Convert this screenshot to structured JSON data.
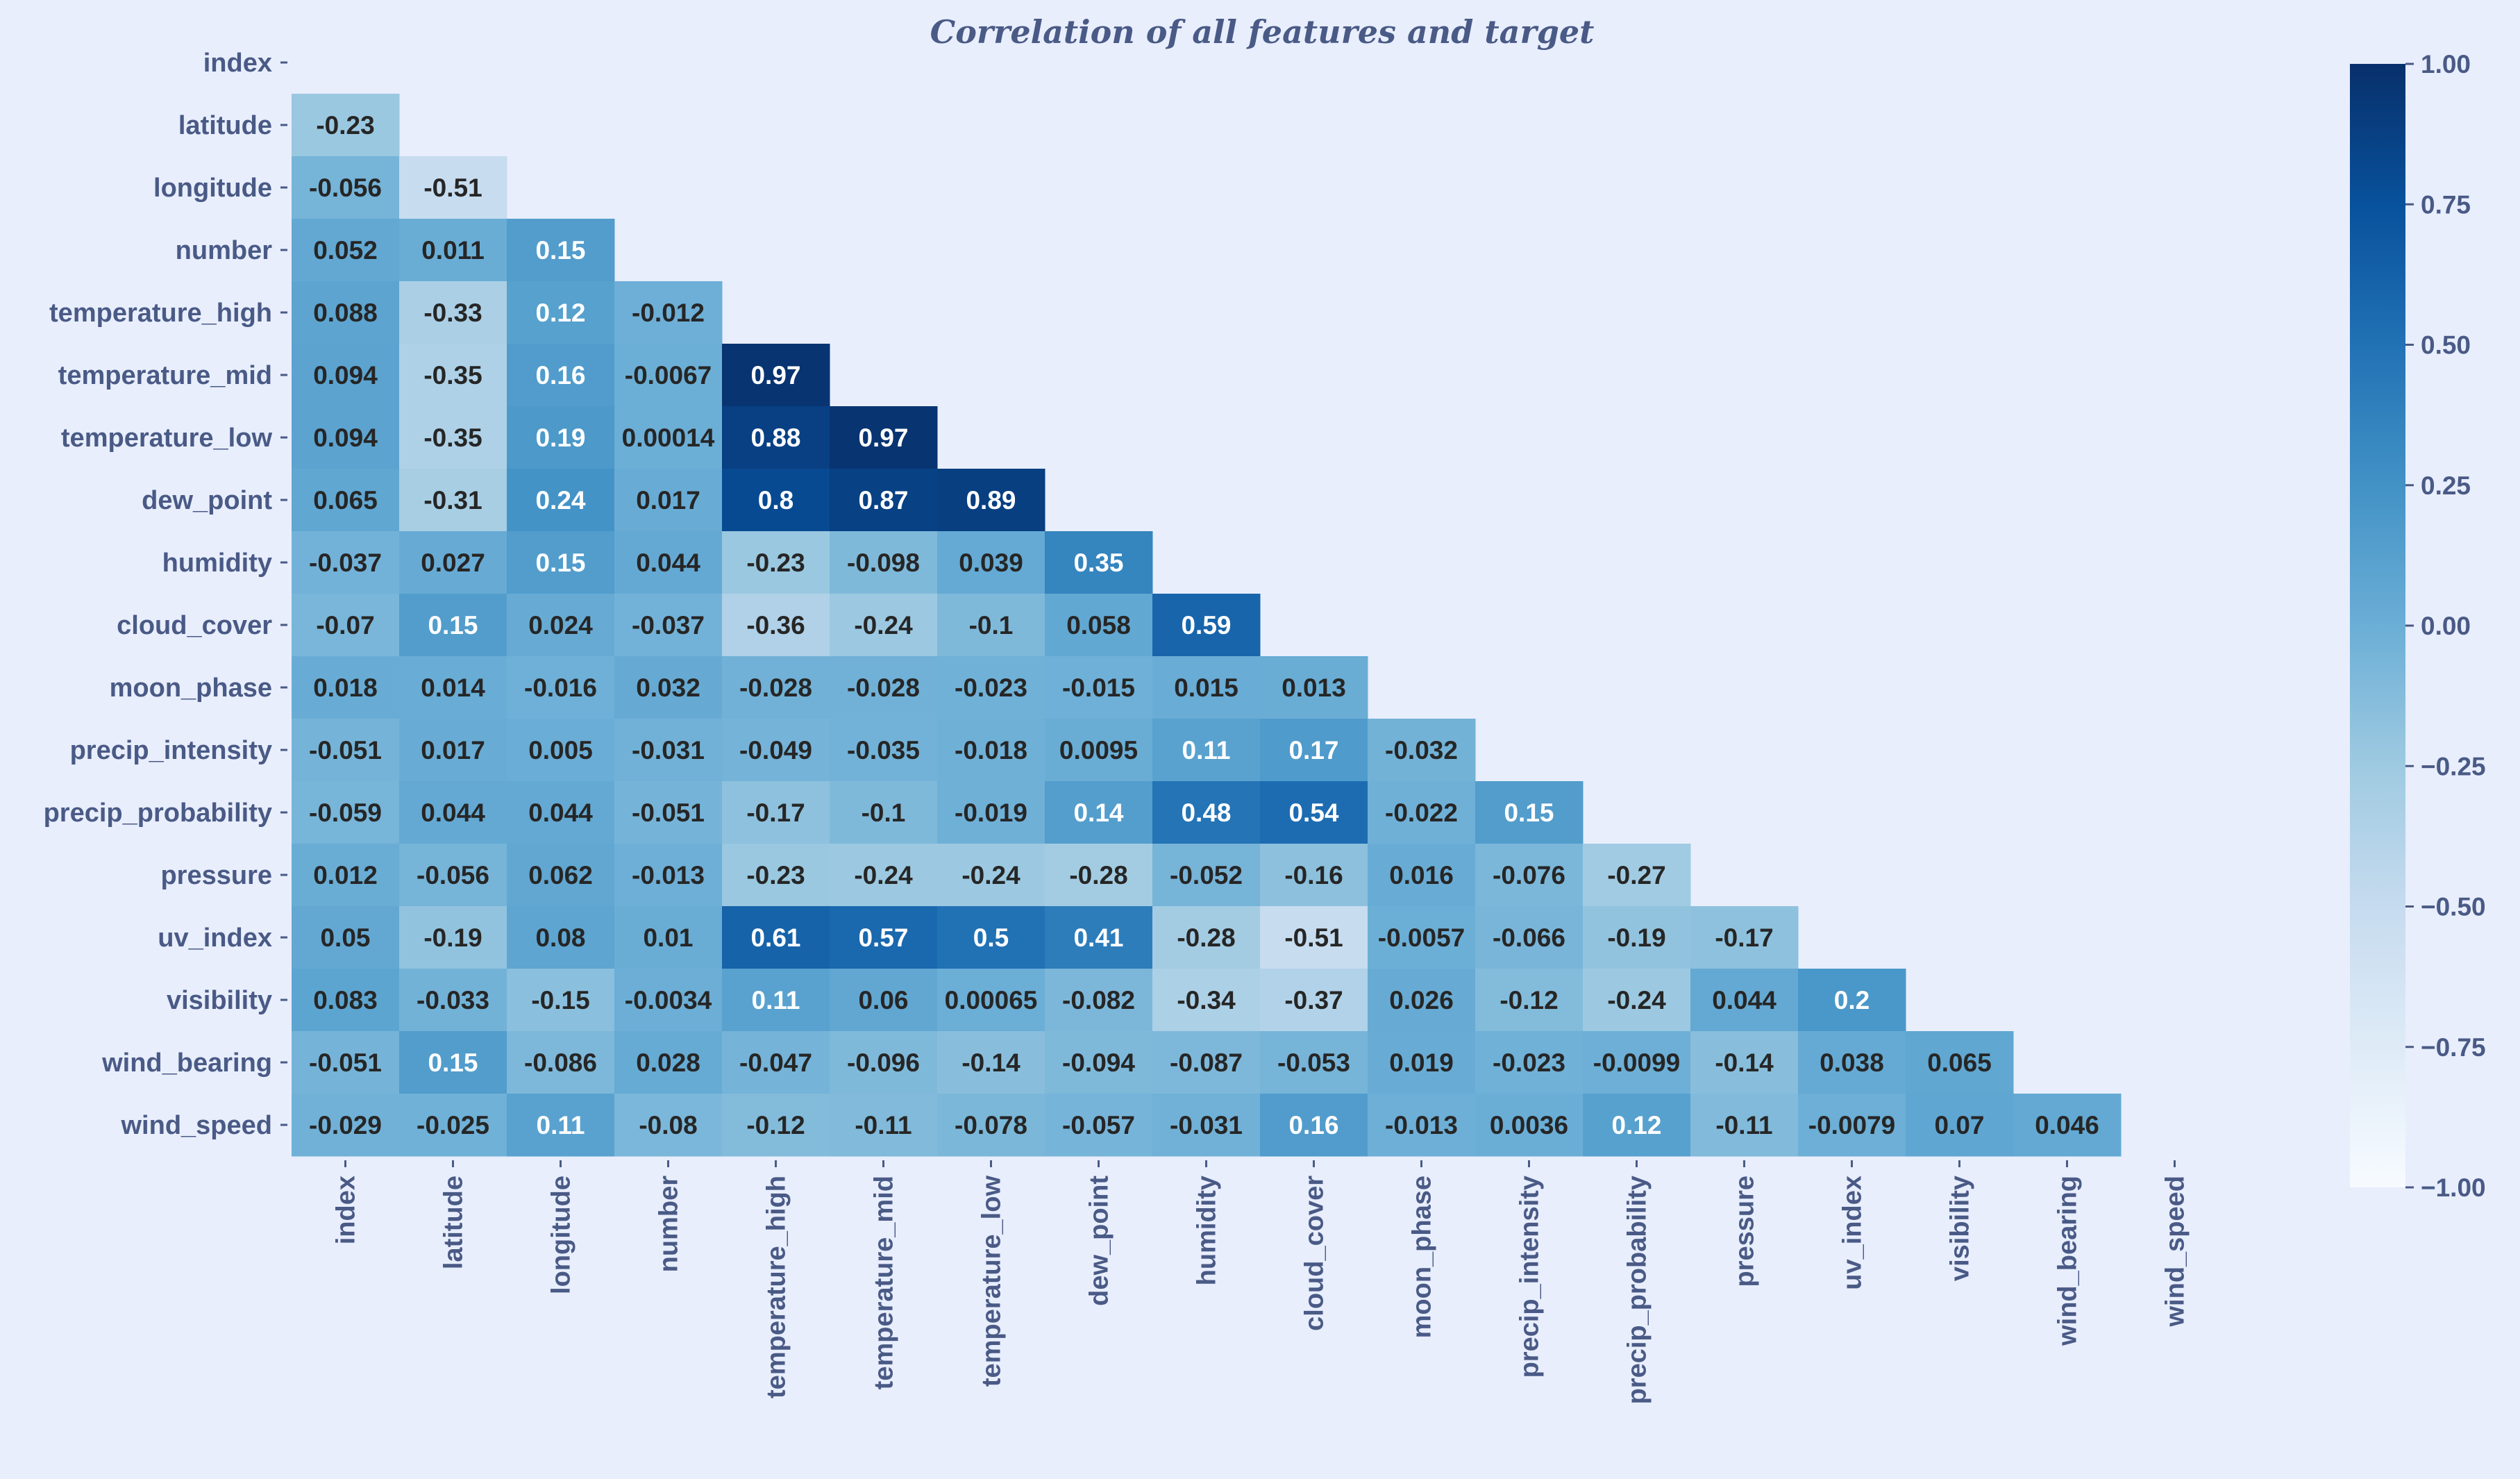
{
  "chart_data": {
    "type": "heatmap",
    "title": "Correlation of all features and target",
    "labels": [
      "index",
      "latitude",
      "longitude",
      "number",
      "temperature_high",
      "temperature_mid",
      "temperature_low",
      "dew_point",
      "humidity",
      "cloud_cover",
      "moon_phase",
      "precip_intensity",
      "precip_probability",
      "pressure",
      "uv_index",
      "visibility",
      "wind_bearing",
      "wind_speed"
    ],
    "mask": "upper-triangle-including-diagonal",
    "cell_labels": [
      [],
      [
        "-0.23"
      ],
      [
        "-0.056",
        "-0.51"
      ],
      [
        "0.052",
        "0.011",
        "0.15"
      ],
      [
        "0.088",
        "-0.33",
        "0.12",
        "-0.012"
      ],
      [
        "0.094",
        "-0.35",
        "0.16",
        "-0.0067",
        "0.97"
      ],
      [
        "0.094",
        "-0.35",
        "0.19",
        "0.00014",
        "0.88",
        "0.97"
      ],
      [
        "0.065",
        "-0.31",
        "0.24",
        "0.017",
        "0.8",
        "0.87",
        "0.89"
      ],
      [
        "-0.037",
        "0.027",
        "0.15",
        "0.044",
        "-0.23",
        "-0.098",
        "0.039",
        "0.35"
      ],
      [
        "-0.07",
        "0.15",
        "0.024",
        "-0.037",
        "-0.36",
        "-0.24",
        "-0.1",
        "0.058",
        "0.59"
      ],
      [
        "0.018",
        "0.014",
        "-0.016",
        "0.032",
        "-0.028",
        "-0.028",
        "-0.023",
        "-0.015",
        "0.015",
        "0.013"
      ],
      [
        "-0.051",
        "0.017",
        "0.005",
        "-0.031",
        "-0.049",
        "-0.035",
        "-0.018",
        "0.0095",
        "0.11",
        "0.17",
        "-0.032"
      ],
      [
        "-0.059",
        "0.044",
        "0.044",
        "-0.051",
        "-0.17",
        "-0.1",
        "-0.019",
        "0.14",
        "0.48",
        "0.54",
        "-0.022",
        "0.15"
      ],
      [
        "0.012",
        "-0.056",
        "0.062",
        "-0.013",
        "-0.23",
        "-0.24",
        "-0.24",
        "-0.28",
        "-0.052",
        "-0.16",
        "0.016",
        "-0.076",
        "-0.27"
      ],
      [
        "0.05",
        "-0.19",
        "0.08",
        "0.01",
        "0.61",
        "0.57",
        "0.5",
        "0.41",
        "-0.28",
        "-0.51",
        "-0.0057",
        "-0.066",
        "-0.19",
        "-0.17"
      ],
      [
        "0.083",
        "-0.033",
        "-0.15",
        "-0.0034",
        "0.11",
        "0.06",
        "0.00065",
        "-0.082",
        "-0.34",
        "-0.37",
        "0.026",
        "-0.12",
        "-0.24",
        "0.044",
        "0.2"
      ],
      [
        "-0.051",
        "0.15",
        "-0.086",
        "0.028",
        "-0.047",
        "-0.096",
        "-0.14",
        "-0.094",
        "-0.087",
        "-0.053",
        "0.019",
        "-0.023",
        "-0.0099",
        "-0.14",
        "0.038",
        "0.065"
      ],
      [
        "-0.029",
        "-0.025",
        "0.11",
        "-0.08",
        "-0.12",
        "-0.11",
        "-0.078",
        "-0.057",
        "-0.031",
        "0.16",
        "-0.013",
        "0.0036",
        "0.12",
        "-0.11",
        "-0.0079",
        "0.07",
        "0.046"
      ]
    ],
    "colormap": "Blues",
    "colorbar": {
      "vmin": -1.0,
      "vmax": 1.0,
      "ticks": [
        "1.00",
        "0.75",
        "0.50",
        "0.25",
        "0.00",
        "−0.25",
        "−0.50",
        "−0.75",
        "−1.00"
      ]
    },
    "colors": {
      "text": "#4a5a86",
      "background": "#e8eefc",
      "dark": "#08306b",
      "light": "#f7fbff"
    }
  }
}
